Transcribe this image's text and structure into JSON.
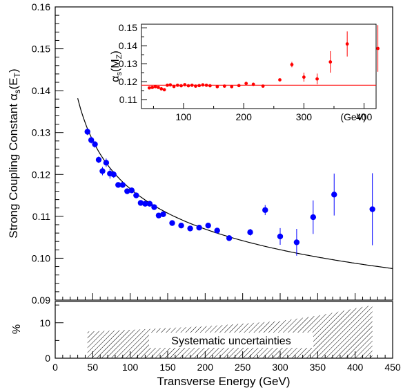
{
  "chart_data": [
    {
      "panel": "main",
      "type": "scatter",
      "xlabel": "Transverse Energy (GeV)",
      "ylabel_main": "Strong Coupling Constant α",
      "ylabel_sub": "s",
      "ylabel_paren_open": "(E",
      "ylabel_paren_sub": "T",
      "ylabel_paren_close": ")",
      "xlim": [
        0,
        450
      ],
      "ylim": [
        0.09,
        0.16
      ],
      "x_ticks": [
        "0",
        "50",
        "100",
        "150",
        "200",
        "250",
        "300",
        "350",
        "400",
        "450"
      ],
      "y_ticks": [
        "0.09",
        "0.10",
        "0.11",
        "0.12",
        "0.13",
        "0.14",
        "0.15",
        "0.16"
      ],
      "marker_color": "#0000ff",
      "curve_color": "#000000",
      "points": [
        {
          "x": 43,
          "y": 0.1302,
          "err": 0.0008
        },
        {
          "x": 48,
          "y": 0.1282,
          "err": 0.0008
        },
        {
          "x": 53,
          "y": 0.1272,
          "err": 0.0008
        },
        {
          "x": 58,
          "y": 0.1235,
          "err": 0.0008
        },
        {
          "x": 63,
          "y": 0.1208,
          "err": 0.001
        },
        {
          "x": 68,
          "y": 0.1228,
          "err": 0.001
        },
        {
          "x": 73,
          "y": 0.1202,
          "err": 0.0012
        },
        {
          "x": 78,
          "y": 0.12,
          "err": 0.0008
        },
        {
          "x": 84,
          "y": 0.1175,
          "err": 0.0006
        },
        {
          "x": 90,
          "y": 0.1175,
          "err": 0.0006
        },
        {
          "x": 96,
          "y": 0.116,
          "err": 0.0006
        },
        {
          "x": 102,
          "y": 0.1162,
          "err": 0.0006
        },
        {
          "x": 108,
          "y": 0.115,
          "err": 0.0006
        },
        {
          "x": 114,
          "y": 0.1132,
          "err": 0.0005
        },
        {
          "x": 120,
          "y": 0.113,
          "err": 0.0005
        },
        {
          "x": 126,
          "y": 0.113,
          "err": 0.0005
        },
        {
          "x": 132,
          "y": 0.1122,
          "err": 0.0005
        },
        {
          "x": 138,
          "y": 0.1102,
          "err": 0.0005
        },
        {
          "x": 144,
          "y": 0.1105,
          "err": 0.0005
        },
        {
          "x": 156,
          "y": 0.1084,
          "err": 0.0005
        },
        {
          "x": 168,
          "y": 0.1078,
          "err": 0.0005
        },
        {
          "x": 180,
          "y": 0.1071,
          "err": 0.0005
        },
        {
          "x": 192,
          "y": 0.1073,
          "err": 0.0005
        },
        {
          "x": 204,
          "y": 0.1078,
          "err": 0.0005
        },
        {
          "x": 216,
          "y": 0.1066,
          "err": 0.0005
        },
        {
          "x": 232,
          "y": 0.1048,
          "err": 0.0005
        },
        {
          "x": 260,
          "y": 0.1062,
          "err": 0.0008
        },
        {
          "x": 280,
          "y": 0.1115,
          "err": 0.0012
        },
        {
          "x": 300,
          "y": 0.1052,
          "err": 0.002
        },
        {
          "x": 322,
          "y": 0.1038,
          "err": 0.0032
        },
        {
          "x": 344,
          "y": 0.1098,
          "err": 0.004
        },
        {
          "x": 372,
          "y": 0.1152,
          "err": 0.005
        },
        {
          "x": 423,
          "y": 0.1117,
          "err": 0.0086
        }
      ]
    },
    {
      "panel": "inset",
      "type": "scatter",
      "ylabel_main": "α",
      "ylabel_sub": "s",
      "ylabel_paren_open": "(M",
      "ylabel_paren_sub": "Z",
      "ylabel_paren_close": ")",
      "x_unit_label": "(GeV)",
      "xlim": [
        30,
        420
      ],
      "ylim": [
        0.105,
        0.152
      ],
      "x_ticks": [
        "100",
        "200",
        "300",
        "400"
      ],
      "y_ticks": [
        "0.11",
        "0.12",
        "0.13",
        "0.14",
        "0.15"
      ],
      "reference_line": 0.118,
      "marker_color": "#ff0000",
      "line_color": "#ff0000",
      "points": [
        {
          "x": 43,
          "y": 0.1165,
          "err": 0
        },
        {
          "x": 48,
          "y": 0.1168,
          "err": 0
        },
        {
          "x": 53,
          "y": 0.1172,
          "err": 0
        },
        {
          "x": 58,
          "y": 0.1168,
          "err": 0
        },
        {
          "x": 63,
          "y": 0.116,
          "err": 0
        },
        {
          "x": 68,
          "y": 0.1155,
          "err": 0
        },
        {
          "x": 73,
          "y": 0.118,
          "err": 0
        },
        {
          "x": 78,
          "y": 0.1182,
          "err": 0
        },
        {
          "x": 84,
          "y": 0.1173,
          "err": 0
        },
        {
          "x": 90,
          "y": 0.118,
          "err": 0
        },
        {
          "x": 96,
          "y": 0.1177,
          "err": 0
        },
        {
          "x": 102,
          "y": 0.1183,
          "err": 0
        },
        {
          "x": 108,
          "y": 0.1177,
          "err": 0
        },
        {
          "x": 114,
          "y": 0.118,
          "err": 0
        },
        {
          "x": 120,
          "y": 0.1175,
          "err": 0
        },
        {
          "x": 126,
          "y": 0.1178,
          "err": 0
        },
        {
          "x": 132,
          "y": 0.1182,
          "err": 0
        },
        {
          "x": 138,
          "y": 0.118,
          "err": 0
        },
        {
          "x": 144,
          "y": 0.1177,
          "err": 0
        },
        {
          "x": 156,
          "y": 0.1172,
          "err": 0
        },
        {
          "x": 168,
          "y": 0.1175,
          "err": 0
        },
        {
          "x": 180,
          "y": 0.1172,
          "err": 0
        },
        {
          "x": 192,
          "y": 0.1178,
          "err": 0
        },
        {
          "x": 204,
          "y": 0.119,
          "err": 0
        },
        {
          "x": 216,
          "y": 0.1185,
          "err": 0
        },
        {
          "x": 232,
          "y": 0.1175,
          "err": 0
        },
        {
          "x": 260,
          "y": 0.121,
          "err": 0.0005
        },
        {
          "x": 280,
          "y": 0.1295,
          "err": 0.0015
        },
        {
          "x": 300,
          "y": 0.1225,
          "err": 0.0025
        },
        {
          "x": 322,
          "y": 0.1215,
          "err": 0.003
        },
        {
          "x": 344,
          "y": 0.131,
          "err": 0.006
        },
        {
          "x": 372,
          "y": 0.141,
          "err": 0.007
        },
        {
          "x": 423,
          "y": 0.1385,
          "err": 0.013
        }
      ]
    },
    {
      "panel": "systematics",
      "type": "area",
      "ylabel": "%",
      "ylim": [
        0,
        16
      ],
      "y_ticks": [
        "0",
        "10"
      ],
      "band_label": "Systematic uncertainties",
      "band": {
        "x": [
          43,
          100,
          200,
          300,
          350,
          423
        ],
        "upper": [
          7.5,
          8,
          9,
          10.5,
          12,
          15
        ],
        "lower": [
          0,
          0,
          0,
          0,
          0,
          0
        ]
      }
    }
  ]
}
